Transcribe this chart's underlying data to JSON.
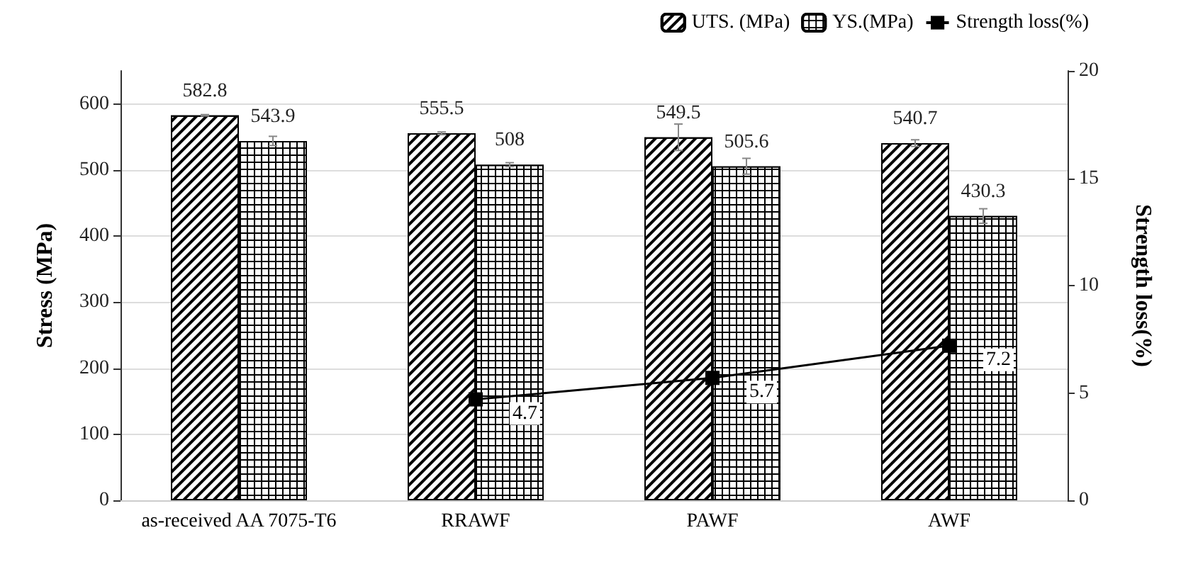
{
  "chart_data": {
    "type": "bar",
    "ylabel": "Stress (MPa)",
    "y2label": "Strength loss(%)",
    "categories": [
      "as-received AA 7075-T6",
      "RRAWF",
      "PAWF",
      "AWF"
    ],
    "series": [
      {
        "name": "UTS. (MPa)",
        "values": [
          582.8,
          555.5,
          549.5,
          540.7
        ],
        "errors": [
          1,
          2,
          20,
          5
        ]
      },
      {
        "name": "YS.(MPa)",
        "values": [
          543.9,
          508,
          505.6,
          430.3
        ],
        "errors": [
          7,
          3,
          12,
          11
        ]
      },
      {
        "name": "Strength loss(%)",
        "type": "line",
        "axis": "y2",
        "color": "#000000",
        "marker": "square",
        "values": [
          null,
          4.7,
          5.7,
          7.2
        ]
      }
    ],
    "ylim": [
      0,
      650
    ],
    "yticks": [
      0,
      100,
      200,
      300,
      400,
      500,
      600
    ],
    "y2lim": [
      0,
      20
    ],
    "y2ticks": [
      0,
      5,
      10,
      15,
      20
    ],
    "grid": "y",
    "legend": "top right",
    "data_labels": true
  }
}
